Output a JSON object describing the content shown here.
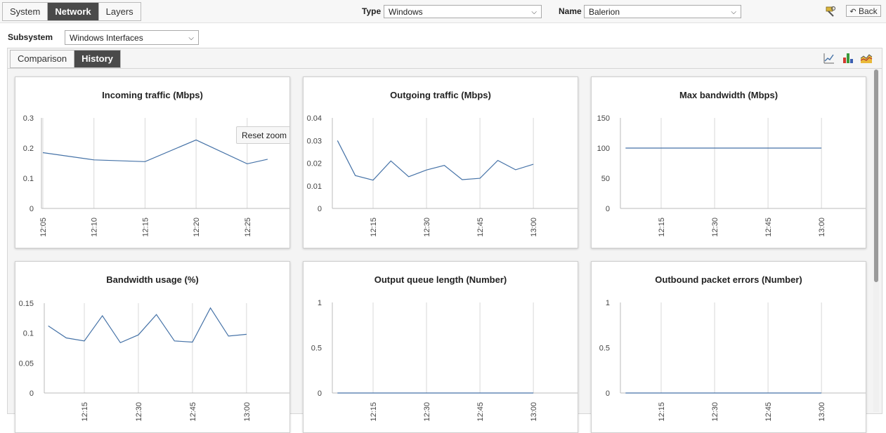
{
  "top_tabs": [
    "System",
    "Network",
    "Layers"
  ],
  "top_active": 1,
  "type": {
    "label": "Type",
    "value": "Windows"
  },
  "name": {
    "label": "Name",
    "value": "Balerion"
  },
  "back_label": "Back",
  "subsystem": {
    "label": "Subsystem",
    "value": "Windows Interfaces"
  },
  "view_tabs": [
    "Comparison",
    "History"
  ],
  "view_active": 1,
  "icons": {
    "line_chart": "line-chart-icon",
    "bar_chart": "bar-chart-icon",
    "area_chart": "area-chart-icon",
    "tools": "tools-icon",
    "back_arrow": "back-arrow-icon"
  },
  "line_color": "#4572a7",
  "chart_data": [
    {
      "type": "line",
      "title": "Incoming traffic (Mbps)",
      "ylim": [
        0,
        0.3
      ],
      "yticks": [
        "0",
        "0.1",
        "0.2",
        "0.3"
      ],
      "xticks": [
        "12:05",
        "12:10",
        "12:15",
        "12:20",
        "12:25"
      ],
      "reset_zoom": "Reset zoom",
      "x": [
        "12:05",
        "12:10",
        "12:15",
        "12:20",
        "12:25",
        "12:27"
      ],
      "values": [
        0.185,
        0.161,
        0.155,
        0.227,
        0.148,
        0.163
      ]
    },
    {
      "type": "line",
      "title": "Outgoing traffic (Mbps)",
      "ylim": [
        0,
        0.04
      ],
      "yticks": [
        "0",
        "0.01",
        "0.02",
        "0.03",
        "0.04"
      ],
      "xticks": [
        "12:15",
        "12:30",
        "12:45",
        "13:00"
      ],
      "x": [
        "12:05",
        "12:10",
        "12:15",
        "12:20",
        "12:25",
        "12:30",
        "12:35",
        "12:40",
        "12:45",
        "12:50",
        "12:55",
        "13:00"
      ],
      "values": [
        0.03,
        0.0145,
        0.0125,
        0.021,
        0.014,
        0.017,
        0.019,
        0.0127,
        0.0133,
        0.0212,
        0.0171,
        0.0195
      ]
    },
    {
      "type": "line",
      "title": "Max bandwidth (Mbps)",
      "ylim": [
        0,
        150
      ],
      "yticks": [
        "0",
        "50",
        "100",
        "150"
      ],
      "xticks": [
        "12:15",
        "12:30",
        "12:45",
        "13:00"
      ],
      "x": [
        "12:05",
        "13:00"
      ],
      "values": [
        100,
        100
      ]
    },
    {
      "type": "line",
      "title": "Bandwidth usage (%)",
      "ylim": [
        0,
        0.15
      ],
      "yticks": [
        "0",
        "0.05",
        "0.1",
        "0.15"
      ],
      "xticks": [
        "12:15",
        "12:30",
        "12:45",
        "13:00"
      ],
      "x": [
        "12:05",
        "12:10",
        "12:15",
        "12:20",
        "12:25",
        "12:30",
        "12:35",
        "12:40",
        "12:45",
        "12:50",
        "12:55",
        "13:00"
      ],
      "values": [
        0.112,
        0.092,
        0.087,
        0.129,
        0.084,
        0.097,
        0.131,
        0.087,
        0.085,
        0.142,
        0.095,
        0.098
      ]
    },
    {
      "type": "line",
      "title": "Output queue length (Number)",
      "ylim": [
        0,
        1
      ],
      "yticks": [
        "0",
        "0.5",
        "1"
      ],
      "xticks": [
        "12:15",
        "12:30",
        "12:45",
        "13:00"
      ],
      "x": [
        "12:05",
        "13:00"
      ],
      "values": [
        0,
        0
      ]
    },
    {
      "type": "line",
      "title": "Outbound packet errors (Number)",
      "ylim": [
        0,
        1
      ],
      "yticks": [
        "0",
        "0.5",
        "1"
      ],
      "xticks": [
        "12:15",
        "12:30",
        "12:45",
        "13:00"
      ],
      "x": [
        "12:05",
        "13:00"
      ],
      "values": [
        0,
        0
      ]
    }
  ]
}
